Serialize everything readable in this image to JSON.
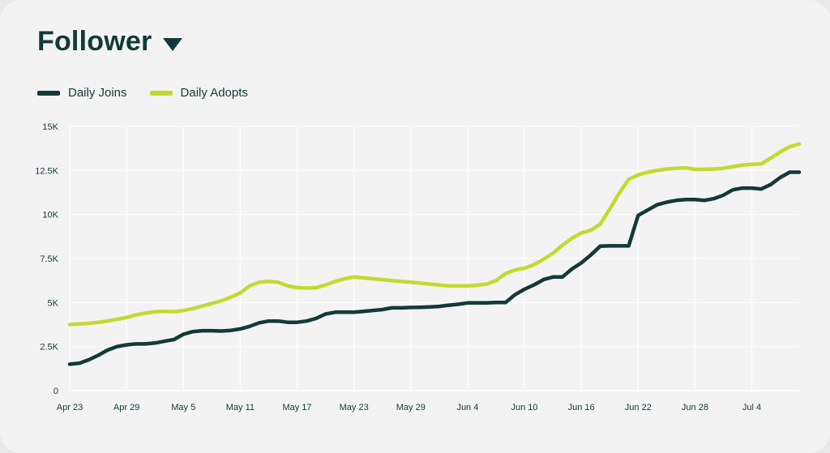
{
  "header": {
    "title": "Follower"
  },
  "colors": {
    "joins": "#123a38",
    "adopts": "#c4d92e",
    "grid": "#ffffff",
    "text": "#123a38"
  },
  "chart_data": {
    "type": "line",
    "title": "Follower",
    "legend_position": "top-left",
    "grid": true,
    "x_range": [
      "Apr 23",
      "Jul 9"
    ],
    "ylim": [
      0,
      15000
    ],
    "y_ticks": [
      0,
      2500,
      5000,
      7500,
      10000,
      12500,
      15000
    ],
    "y_tick_labels": [
      "0",
      "2.5K",
      "5K",
      "7.5K",
      "10K",
      "12.5K",
      "15K"
    ],
    "x_ticks": [
      "Apr 23",
      "Apr 29",
      "May 5",
      "May 11",
      "May 17",
      "May 23",
      "May 29",
      "Jun 4",
      "Jun 10",
      "Jun 16",
      "Jun 22",
      "Jun 28",
      "Jul 4"
    ],
    "x_tick_day_index": [
      0,
      6,
      12,
      18,
      24,
      30,
      36,
      42,
      48,
      54,
      60,
      66,
      72
    ],
    "series": [
      {
        "name": "Daily Joins",
        "color": "#123a38",
        "points": [
          [
            0,
            1500
          ],
          [
            1,
            1550
          ],
          [
            2,
            1750
          ],
          [
            3,
            2000
          ],
          [
            4,
            2300
          ],
          [
            5,
            2500
          ],
          [
            6,
            2600
          ],
          [
            7,
            2650
          ],
          [
            8,
            2650
          ],
          [
            9,
            2700
          ],
          [
            10,
            2800
          ],
          [
            11,
            2900
          ],
          [
            12,
            3200
          ],
          [
            13,
            3350
          ],
          [
            14,
            3400
          ],
          [
            15,
            3400
          ],
          [
            16,
            3380
          ],
          [
            17,
            3420
          ],
          [
            18,
            3500
          ],
          [
            19,
            3650
          ],
          [
            20,
            3850
          ],
          [
            21,
            3950
          ],
          [
            22,
            3950
          ],
          [
            23,
            3880
          ],
          [
            24,
            3880
          ],
          [
            25,
            3950
          ],
          [
            26,
            4100
          ],
          [
            27,
            4350
          ],
          [
            28,
            4450
          ],
          [
            29,
            4450
          ],
          [
            30,
            4450
          ],
          [
            31,
            4500
          ],
          [
            32,
            4550
          ],
          [
            33,
            4600
          ],
          [
            34,
            4700
          ],
          [
            35,
            4700
          ],
          [
            36,
            4720
          ],
          [
            37,
            4730
          ],
          [
            38,
            4750
          ],
          [
            39,
            4780
          ],
          [
            40,
            4850
          ],
          [
            41,
            4900
          ],
          [
            42,
            4980
          ],
          [
            43,
            4980
          ],
          [
            44,
            4980
          ],
          [
            45,
            5000
          ],
          [
            46,
            5000
          ],
          [
            47,
            5450
          ],
          [
            48,
            5750
          ],
          [
            49,
            6000
          ],
          [
            50,
            6300
          ],
          [
            51,
            6450
          ],
          [
            52,
            6450
          ],
          [
            53,
            6900
          ],
          [
            54,
            7250
          ],
          [
            55,
            7700
          ],
          [
            56,
            8200
          ],
          [
            57,
            8220
          ],
          [
            58,
            8220
          ],
          [
            59,
            8220
          ],
          [
            60,
            9950
          ],
          [
            61,
            10250
          ],
          [
            62,
            10550
          ],
          [
            63,
            10700
          ],
          [
            64,
            10800
          ],
          [
            65,
            10850
          ],
          [
            66,
            10850
          ],
          [
            67,
            10800
          ],
          [
            68,
            10900
          ],
          [
            69,
            11100
          ],
          [
            70,
            11400
          ],
          [
            71,
            11500
          ],
          [
            72,
            11500
          ],
          [
            73,
            11450
          ],
          [
            74,
            11700
          ],
          [
            75,
            12100
          ],
          [
            76,
            12400
          ],
          [
            77,
            12400
          ]
        ]
      },
      {
        "name": "Daily Adopts",
        "color": "#c4d92e",
        "points": [
          [
            0,
            3750
          ],
          [
            1,
            3780
          ],
          [
            2,
            3820
          ],
          [
            3,
            3880
          ],
          [
            4,
            3950
          ],
          [
            5,
            4050
          ],
          [
            6,
            4150
          ],
          [
            7,
            4300
          ],
          [
            8,
            4400
          ],
          [
            9,
            4480
          ],
          [
            10,
            4500
          ],
          [
            11,
            4480
          ],
          [
            12,
            4550
          ],
          [
            13,
            4650
          ],
          [
            14,
            4800
          ],
          [
            15,
            4950
          ],
          [
            16,
            5100
          ],
          [
            17,
            5300
          ],
          [
            18,
            5550
          ],
          [
            19,
            5950
          ],
          [
            20,
            6150
          ],
          [
            21,
            6200
          ],
          [
            22,
            6150
          ],
          [
            23,
            5950
          ],
          [
            24,
            5850
          ],
          [
            25,
            5820
          ],
          [
            26,
            5850
          ],
          [
            27,
            6000
          ],
          [
            28,
            6200
          ],
          [
            29,
            6350
          ],
          [
            30,
            6450
          ],
          [
            31,
            6400
          ],
          [
            32,
            6350
          ],
          [
            33,
            6300
          ],
          [
            34,
            6250
          ],
          [
            35,
            6200
          ],
          [
            36,
            6150
          ],
          [
            37,
            6100
          ],
          [
            38,
            6050
          ],
          [
            39,
            6000
          ],
          [
            40,
            5950
          ],
          [
            41,
            5950
          ],
          [
            42,
            5950
          ],
          [
            43,
            5980
          ],
          [
            44,
            6050
          ],
          [
            45,
            6250
          ],
          [
            46,
            6650
          ],
          [
            47,
            6850
          ],
          [
            48,
            6950
          ],
          [
            49,
            7150
          ],
          [
            50,
            7450
          ],
          [
            51,
            7800
          ],
          [
            52,
            8250
          ],
          [
            53,
            8650
          ],
          [
            54,
            8950
          ],
          [
            55,
            9100
          ],
          [
            56,
            9450
          ],
          [
            57,
            10300
          ],
          [
            58,
            11200
          ],
          [
            59,
            12000
          ],
          [
            60,
            12250
          ],
          [
            61,
            12400
          ],
          [
            62,
            12500
          ],
          [
            63,
            12580
          ],
          [
            64,
            12620
          ],
          [
            65,
            12650
          ],
          [
            66,
            12560
          ],
          [
            67,
            12560
          ],
          [
            68,
            12580
          ],
          [
            69,
            12620
          ],
          [
            70,
            12720
          ],
          [
            71,
            12800
          ],
          [
            72,
            12850
          ],
          [
            73,
            12870
          ],
          [
            74,
            13200
          ],
          [
            75,
            13550
          ],
          [
            76,
            13850
          ],
          [
            77,
            14000
          ]
        ]
      }
    ]
  }
}
